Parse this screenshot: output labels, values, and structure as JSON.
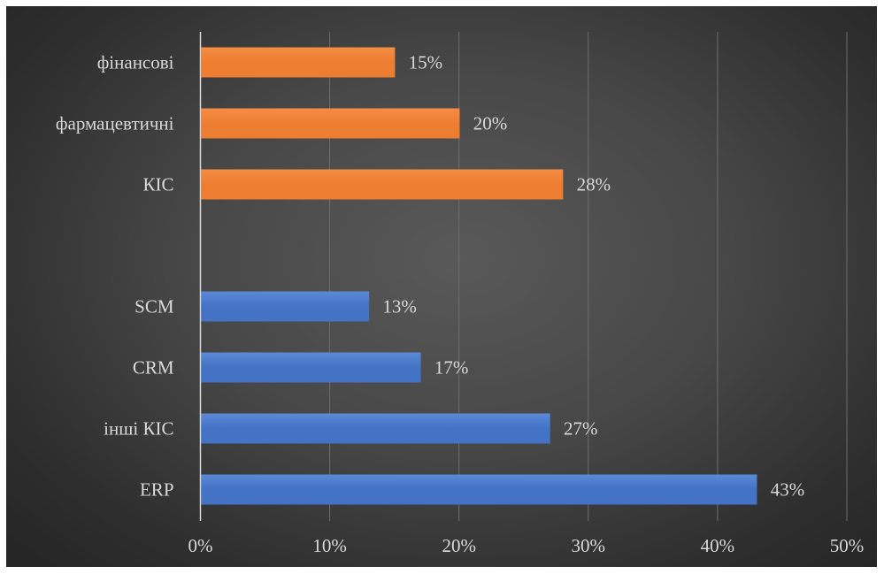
{
  "chart_data": {
    "type": "bar",
    "orientation": "horizontal",
    "categories": [
      "ERP",
      "інші КІС",
      "CRM",
      "SCM",
      "",
      "КІС",
      "фармацевтичні",
      "фінансові"
    ],
    "values": [
      43,
      27,
      17,
      13,
      null,
      28,
      20,
      15
    ],
    "value_labels": [
      "43%",
      "27%",
      "17%",
      "13%",
      "",
      "28%",
      "20%",
      "15%"
    ],
    "bar_colors": [
      "#4472c4",
      "#4472c4",
      "#4472c4",
      "#4472c4",
      null,
      "#ed7d31",
      "#ed7d31",
      "#ed7d31"
    ],
    "xlim": [
      0,
      50
    ],
    "x_ticks": [
      0,
      10,
      20,
      30,
      40,
      50
    ],
    "x_tick_labels": [
      "0%",
      "10%",
      "20%",
      "30%",
      "40%",
      "50%"
    ],
    "grid": true,
    "title": "",
    "xlabel": "",
    "ylabel": "",
    "colors": {
      "background_center": "#595959",
      "background_edge": "#262626",
      "gridline": "#6e6e6e",
      "text": "#d9d9d9",
      "axis": "#d9d9d9"
    }
  }
}
